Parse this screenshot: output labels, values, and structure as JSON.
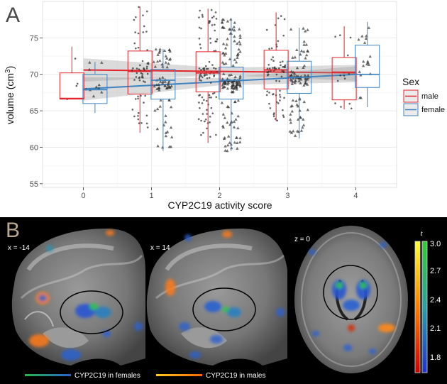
{
  "panel_a": {
    "letter": "A",
    "chart_data": {
      "type": "boxplot",
      "x_values": [
        0,
        1,
        2,
        3,
        4
      ],
      "xlabel": "CYP2C19 activity score",
      "ylabel_prefix": "volume (cm",
      "ylabel_sup": "3",
      "ylabel_suffix": ")",
      "yticks": [
        55,
        60,
        65,
        70,
        75
      ],
      "ylim": [
        54.5,
        80
      ],
      "xlim": [
        -0.6,
        4.6
      ],
      "grid": true,
      "legend_title": "Sex",
      "legend_position": "right",
      "series": [
        {
          "name": "male",
          "color": "#e3252d",
          "marker": "circle",
          "offset": -0.17,
          "boxes": [
            {
              "x": 0,
              "min": 66.6,
              "q1": 66.6,
              "median": 66.7,
              "q3": 70.2,
              "max": 73.8
            },
            {
              "x": 1,
              "min": 62.0,
              "q1": 67.3,
              "median": 70.4,
              "q3": 73.2,
              "max": 79.3
            },
            {
              "x": 2,
              "min": 60.6,
              "q1": 67.6,
              "median": 70.2,
              "q3": 73.1,
              "max": 79.0
            },
            {
              "x": 3,
              "min": 63.6,
              "q1": 68.0,
              "median": 70.6,
              "q3": 73.3,
              "max": 78.5
            },
            {
              "x": 4,
              "min": 65.2,
              "q1": 66.5,
              "median": 70.3,
              "q3": 72.3,
              "max": 76.6
            }
          ],
          "trend": {
            "y_at_min": 70.6,
            "y_at_max": 70.2
          }
        },
        {
          "name": "female",
          "color": "#3f84c0",
          "marker": "triangle",
          "offset": 0.17,
          "boxes": [
            {
              "x": 0,
              "min": 64.7,
              "q1": 66.0,
              "median": 67.9,
              "q3": 70.0,
              "max": 71.7
            },
            {
              "x": 1,
              "min": 59.5,
              "q1": 66.6,
              "median": 69.2,
              "q3": 70.7,
              "max": 73.5
            },
            {
              "x": 2,
              "min": 59.5,
              "q1": 66.6,
              "median": 69.2,
              "q3": 71.0,
              "max": 77.7
            },
            {
              "x": 3,
              "min": 61.2,
              "q1": 67.4,
              "median": 69.6,
              "q3": 71.8,
              "max": 76.4
            },
            {
              "x": 4,
              "min": 65.5,
              "q1": 68.2,
              "median": 70.0,
              "q3": 74.0,
              "max": 77.2
            }
          ],
          "trend": {
            "y_at_min": 68.0,
            "y_at_max": 70.0
          }
        }
      ]
    }
  },
  "panel_b": {
    "letter": "B",
    "view1_label": "x = -14",
    "view2_label": "x = 14",
    "view3_label": "z = 0",
    "colorbar": {
      "t_label": "t",
      "ticks": [
        "3.0",
        "2.7",
        "2.4",
        "2.1",
        "1.8"
      ]
    },
    "legend_female": "CYP2C19 in females",
    "legend_male": "CYP2C19 in males"
  }
}
